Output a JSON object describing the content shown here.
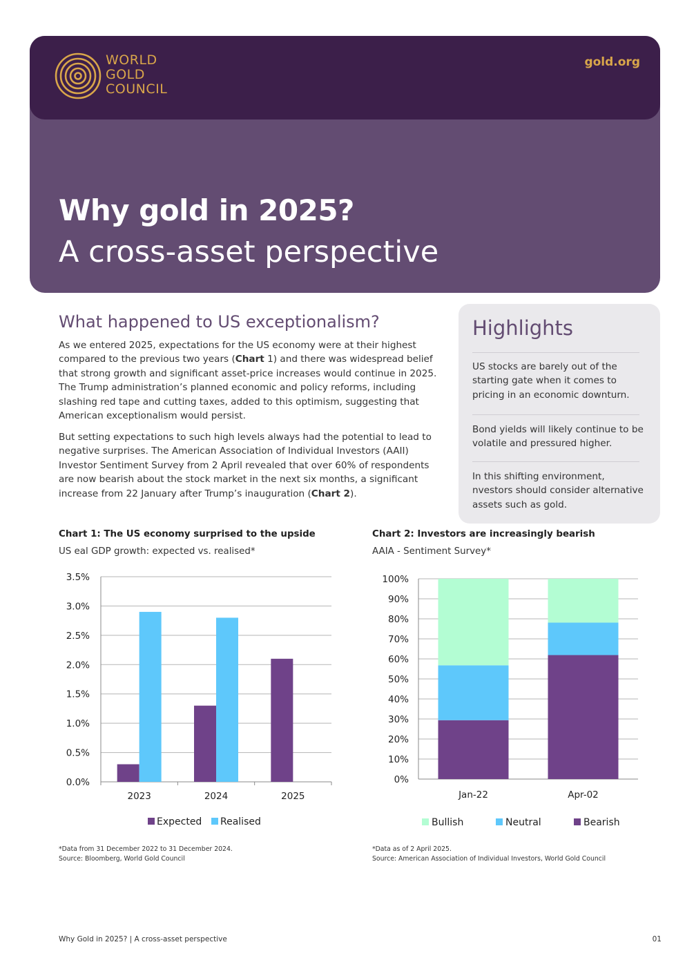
{
  "header": {
    "logo_lines": [
      "WORLD",
      "GOLD",
      "COUNCIL"
    ],
    "site_link": "gold.org",
    "title": "Why gold in 2025?",
    "subtitle": "A cross-asset perspective"
  },
  "intro": {
    "heading": "What happened to US exceptionalism?",
    "p1_a": "As we entered 2025, expectations for the US economy were at their highest compared to the previous two years (",
    "p1_ref_bold": "Chart",
    "p1_ref_num": " 1",
    "p1_b": ") and there was widespread belief that strong growth and significant asset-price increases would continue in 2025. The Trump administration’s planned economic and policy reforms, including slashing red tape and cutting taxes, added to this optimism, suggesting that American exceptionalism would persist.",
    "p2_a": "But setting expectations to such high levels always had the potential to lead to negative surprises. The American Association of Individual Investors (AAII) Investor Sentiment Survey from 2 April revealed that over 60% of respondents are now bearish about the stock market in the next six months, a significant increase from 22 January after Trump’s inauguration (",
    "p2_ref": "Chart 2",
    "p2_b": ")."
  },
  "highlights": {
    "title": "Highlights",
    "items": [
      "US stocks are barely out of the starting gate when it comes to pricing in an economic downturn.",
      "Bond yields will likely continue to be volatile and pressured higher.",
      "In this shifting environment,  nvestors should consider alternative assets such as gold."
    ]
  },
  "colors": {
    "purple_dark": "#3c1f4a",
    "purple_mid": "#634c72",
    "gold": "#d9a64a",
    "expected": "#6f4289",
    "realised": "#5ec8fb",
    "bullish": "#b3fdd3",
    "neutral": "#5ec8fb",
    "bearish": "#6f4289"
  },
  "chart1": {
    "title": "Chart 1: The US economy surprised to the upside",
    "subtitle": "US   eal GDP growth: expected vs. realised*",
    "note": "*Data from 31 December 2022 to 31 December 2024.",
    "source": "Source: Bloomberg, World Gold Council"
  },
  "chart2": {
    "title": "Chart 2: Investors are increasingly bearish",
    "subtitle": "AAIA - Sentiment Survey*",
    "note": "*Data as of 2 April 2025.",
    "source": "Source: American Association of Individual Investors, World Gold Council"
  },
  "chart_data": [
    {
      "type": "bar",
      "categories": [
        "2023",
        "2024",
        "2025"
      ],
      "series": [
        {
          "name": "Expected",
          "values": [
            0.3,
            1.3,
            2.1
          ]
        },
        {
          "name": "Realised",
          "values": [
            2.9,
            2.8,
            null
          ]
        }
      ],
      "ylim": [
        0,
        3.5
      ],
      "yticks": [
        "0.0%",
        "0.5%",
        "1.0%",
        "1.5%",
        "2.0%",
        "2.5%",
        "3.0%",
        "3.5%"
      ],
      "legend": "bottom",
      "grid": true
    },
    {
      "type": "bar",
      "stacked": true,
      "categories": [
        "Jan-22",
        "Apr-02"
      ],
      "series": [
        {
          "name": "Bearish",
          "values": [
            29.4,
            61.9
          ]
        },
        {
          "name": "Neutral",
          "values": [
            27.4,
            16.2
          ]
        },
        {
          "name": "Bullish",
          "values": [
            43.2,
            21.9
          ]
        }
      ],
      "legend_order": [
        "Bullish",
        "Neutral",
        "Bearish"
      ],
      "ylim": [
        0,
        100
      ],
      "yticks": [
        "0%",
        "10%",
        "20%",
        "30%",
        "40%",
        "50%",
        "60%",
        "70%",
        "80%",
        "90%",
        "100%"
      ],
      "legend": "bottom",
      "grid": true
    }
  ],
  "footer": {
    "left": "Why Gold in 2025? | A cross-asset perspective",
    "page": "01"
  }
}
